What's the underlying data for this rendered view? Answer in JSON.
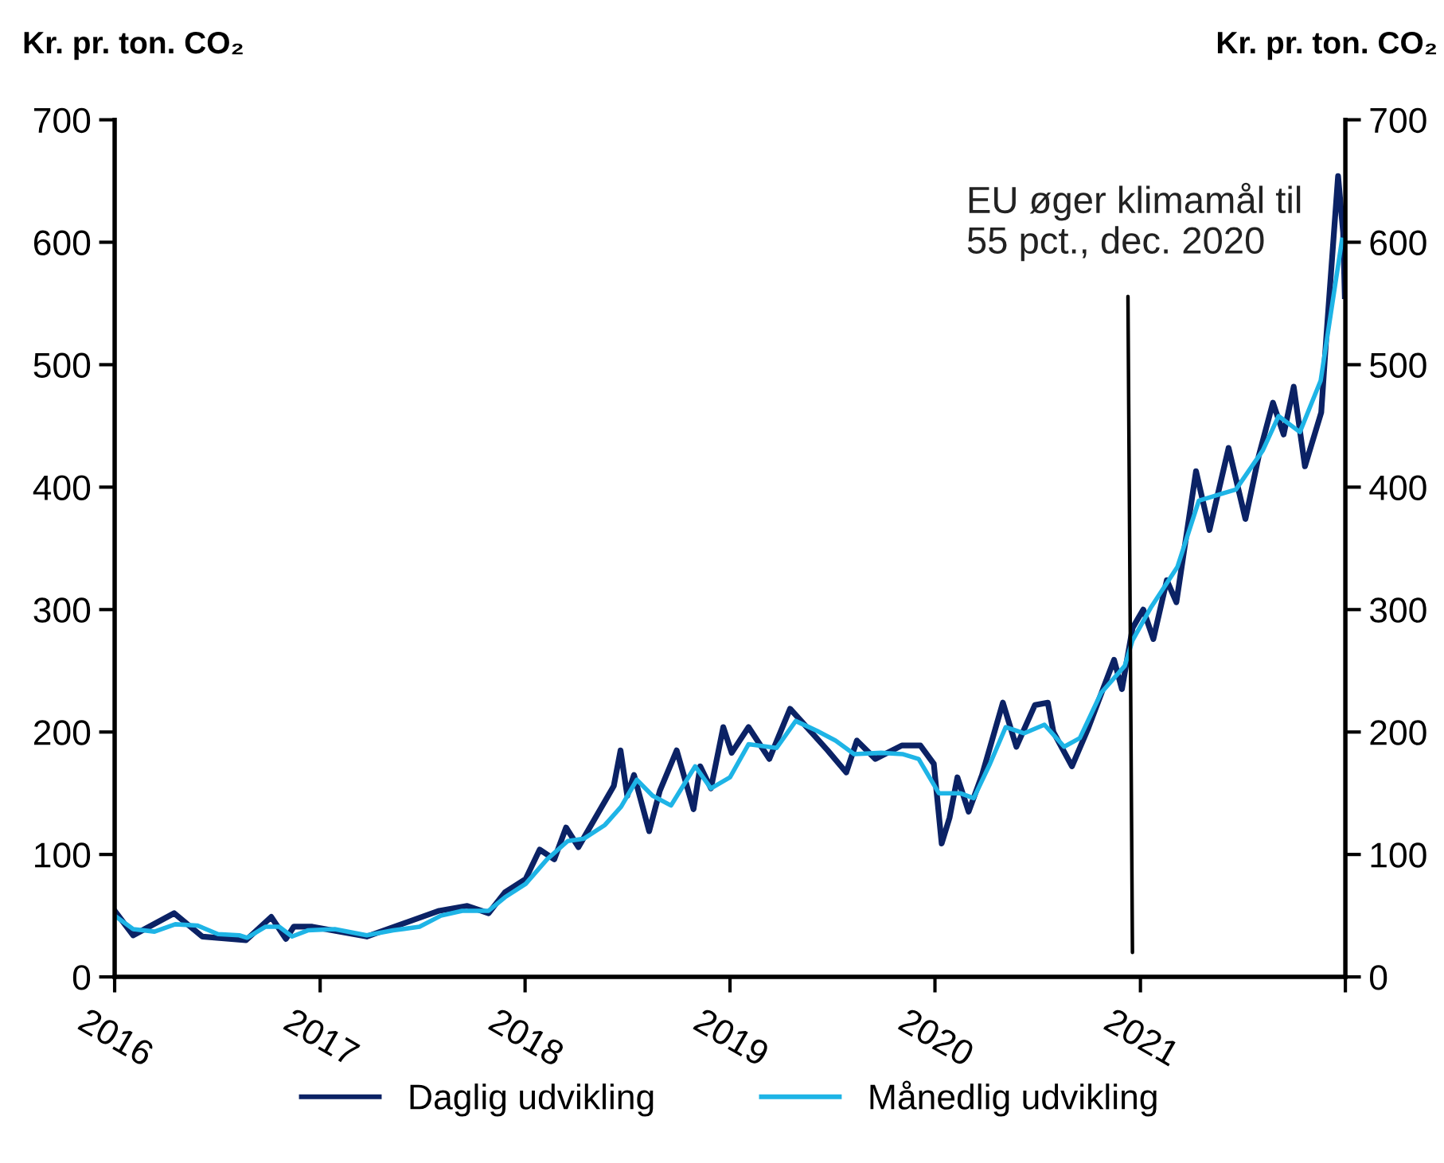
{
  "chart_data": {
    "type": "line",
    "ylabel": "Kr. pr. ton. CO₂",
    "y2label": "Kr. pr. ton. CO₂",
    "xlim": [
      "2016-01-01",
      "2022-01-01"
    ],
    "xticks": [
      {
        "value": "2016-01-01",
        "label": "2016"
      },
      {
        "value": "2017-01-01",
        "label": "2017"
      },
      {
        "value": "2018-01-01",
        "label": "2018"
      },
      {
        "value": "2019-01-01",
        "label": "2019"
      },
      {
        "value": "2020-01-01",
        "label": "2020"
      },
      {
        "value": "2021-01-01",
        "label": "2021"
      },
      {
        "value": "2022-01-01",
        "label": null
      }
    ],
    "ylim": [
      0,
      700
    ],
    "yticks": [
      0,
      100,
      200,
      300,
      400,
      500,
      600,
      700
    ],
    "y2lim": [
      0,
      700
    ],
    "y2ticks": [
      0,
      100,
      200,
      300,
      400,
      500,
      600,
      700
    ],
    "grid": false,
    "legend": "bottom",
    "line_style": "solid",
    "marker": "none",
    "annotations": [
      "EU øger klimamål til\n55 pct., dec. 2020"
    ],
    "series": [
      {
        "name": "Daglig udvikling",
        "color": "#0b2265",
        "x": [
          "2016-01-01",
          "2016-02-03",
          "2016-04-16",
          "2016-06-05",
          "2016-08-22",
          "2016-10-06",
          "2016-11-01",
          "2016-11-15",
          "2016-12-18",
          "2017-03-25",
          "2017-08-01",
          "2017-09-20",
          "2017-10-28",
          "2017-11-26",
          "2018-01-02",
          "2018-01-27",
          "2018-02-22",
          "2018-03-15",
          "2018-04-06",
          "2018-06-08",
          "2018-06-20",
          "2018-07-02",
          "2018-07-14",
          "2018-08-10",
          "2018-08-29",
          "2018-09-28",
          "2018-10-28",
          "2018-11-09",
          "2018-11-28",
          "2018-12-20",
          "2019-01-04",
          "2019-02-03",
          "2019-03-12",
          "2019-04-18",
          "2019-06-24",
          "2019-07-27",
          "2019-08-15",
          "2019-09-17",
          "2019-11-03",
          "2019-12-06",
          "2019-12-30",
          "2020-01-13",
          "2020-01-27",
          "2020-02-10",
          "2020-03-01",
          "2020-03-25",
          "2020-05-01",
          "2020-05-25",
          "2020-06-27",
          "2020-07-20",
          "2020-07-30",
          "2020-09-01",
          "2020-09-29",
          "2020-11-15",
          "2020-11-29",
          "2020-12-18",
          "2021-01-06",
          "2021-01-24",
          "2021-02-17",
          "2021-03-06",
          "2021-04-10",
          "2021-05-04",
          "2021-06-07",
          "2021-07-07",
          "2021-07-31",
          "2021-08-25",
          "2021-09-13",
          "2021-10-01",
          "2021-10-21",
          "2021-11-19",
          "2021-11-28",
          "2021-12-19",
          "2021-12-28",
          "2021-12-31"
        ],
        "values": [
          54,
          34,
          52,
          33,
          30,
          49,
          31,
          41,
          41,
          33,
          54,
          58,
          52,
          69,
          80,
          104,
          96,
          122,
          106,
          156,
          185,
          148,
          165,
          119,
          152,
          185,
          137,
          172,
          154,
          204,
          183,
          204,
          178,
          219,
          185,
          167,
          193,
          178,
          189,
          189,
          174,
          109,
          130,
          163,
          135,
          165,
          224,
          188,
          222,
          224,
          200,
          172,
          202,
          259,
          235,
          285,
          300,
          276,
          324,
          306,
          413,
          365,
          432,
          374,
          426,
          469,
          443,
          482,
          417,
          461,
          522,
          654,
          608,
          556
        ]
      },
      {
        "name": "Månedlig udvikling",
        "color": "#1eb4e6",
        "x": [
          "2016-01-01",
          "2016-02-03",
          "2016-03-12",
          "2016-04-18",
          "2016-05-27",
          "2016-07-03",
          "2016-08-10",
          "2016-08-24",
          "2016-09-26",
          "2016-10-20",
          "2016-11-12",
          "2016-12-10",
          "2017-01-27",
          "2017-03-25",
          "2017-05-11",
          "2017-06-27",
          "2017-08-04",
          "2017-09-11",
          "2017-10-28",
          "2017-11-26",
          "2018-01-02",
          "2018-02-09",
          "2018-03-18",
          "2018-04-16",
          "2018-05-23",
          "2018-06-21",
          "2018-07-19",
          "2018-08-16",
          "2018-09-18",
          "2018-10-31",
          "2018-11-28",
          "2019-01-01",
          "2019-02-03",
          "2019-03-25",
          "2019-04-28",
          "2019-06-05",
          "2019-07-08",
          "2019-08-10",
          "2019-09-27",
          "2019-11-04",
          "2019-12-03",
          "2020-01-08",
          "2020-02-15",
          "2020-03-10",
          "2020-04-08",
          "2020-05-06",
          "2020-06-08",
          "2020-07-14",
          "2020-08-18",
          "2020-09-15",
          "2020-10-23",
          "2020-12-04",
          "2020-12-18",
          "2021-01-20",
          "2021-03-08",
          "2021-04-15",
          "2021-06-20",
          "2021-08-07",
          "2021-09-04",
          "2021-10-12",
          "2021-11-18",
          "2021-12-26"
        ],
        "values": [
          50,
          39,
          37,
          43,
          42,
          35,
          34,
          32,
          41,
          41,
          33,
          38,
          39,
          34,
          38,
          41,
          50,
          54,
          54,
          65,
          76,
          96,
          111,
          113,
          124,
          139,
          161,
          148,
          140,
          172,
          154,
          163,
          190,
          187,
          209,
          201,
          193,
          182,
          183,
          182,
          178,
          150,
          150,
          146,
          174,
          204,
          199,
          206,
          188,
          195,
          232,
          254,
          275,
          302,
          335,
          389,
          398,
          430,
          458,
          445,
          487,
          602
        ]
      }
    ]
  }
}
